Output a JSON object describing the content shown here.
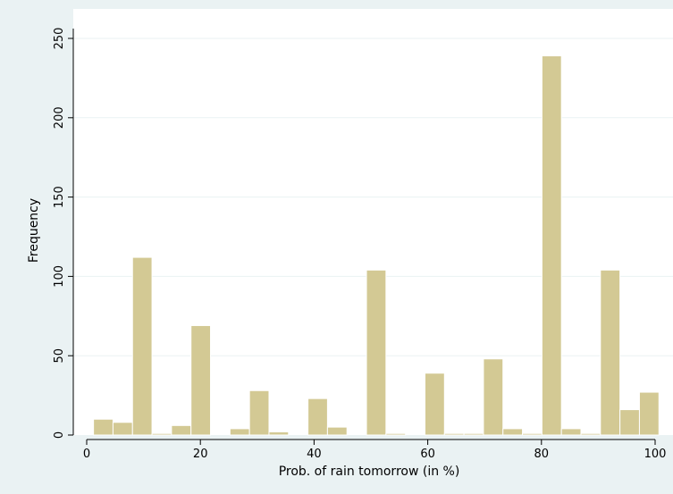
{
  "chart_data": {
    "type": "bar",
    "subtype": "histogram",
    "xlabel": "Prob. of rain tomorrow (in %)",
    "ylabel": "Frequency",
    "xlim": [
      0,
      100
    ],
    "ylim": [
      0,
      250
    ],
    "x_ticks": [
      0,
      20,
      40,
      60,
      80,
      100
    ],
    "y_ticks": [
      0,
      50,
      100,
      150,
      200,
      250
    ],
    "bin_width": 3.43,
    "bins_start": 1.2,
    "values": [
      10,
      8,
      112,
      1,
      6,
      69,
      0,
      4,
      28,
      2,
      0,
      23,
      5,
      0,
      104,
      1,
      0,
      39,
      1,
      1,
      48,
      4,
      1,
      239,
      4,
      1,
      104,
      16,
      27
    ],
    "grid": true,
    "legend": "none"
  },
  "colors": {
    "bar_fill": "#d3c994",
    "bar_stroke": "#ffffff",
    "plot_background": "#ffffff",
    "outer_background": "#eaf2f3",
    "gridline": "#eaf2f3",
    "axis_line": "#000000"
  }
}
